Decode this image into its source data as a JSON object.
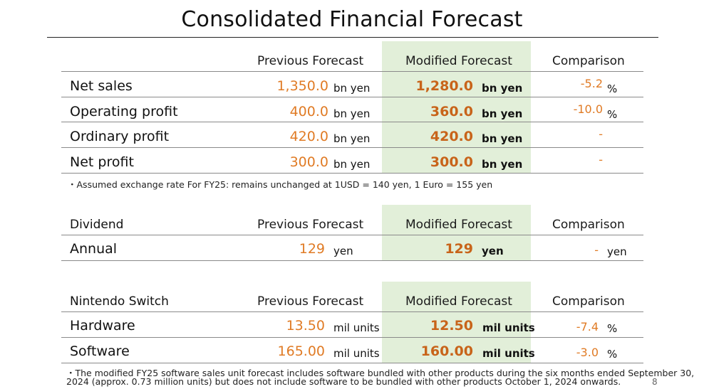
{
  "title": "Consolidated Financial Forecast",
  "columns": {
    "previous": "Previous Forecast",
    "modified": "Modified Forecast",
    "comparison": "Comparison"
  },
  "financials": {
    "rows": [
      {
        "label": "Net sales",
        "prev": "1,350.0",
        "prev_unit": "bn yen",
        "mod": "1,280.0",
        "mod_unit": "bn yen",
        "cmp": "-5.2",
        "cmp_unit": "%"
      },
      {
        "label": "Operating profit",
        "prev": "400.0",
        "prev_unit": "bn yen",
        "mod": "360.0",
        "mod_unit": "bn yen",
        "cmp": "-10.0",
        "cmp_unit": "%"
      },
      {
        "label": "Ordinary profit",
        "prev": "420.0",
        "prev_unit": "bn yen",
        "mod": "420.0",
        "mod_unit": "bn yen",
        "cmp": "-",
        "cmp_unit": ""
      },
      {
        "label": "Net profit",
        "prev": "300.0",
        "prev_unit": "bn yen",
        "mod": "300.0",
        "mod_unit": "bn yen",
        "cmp": "-",
        "cmp_unit": ""
      }
    ],
    "note": "・Assumed exchange rate For FY25: remains unchanged at 1USD = 140 yen, 1 Euro = 155 yen"
  },
  "dividend": {
    "section": "Dividend",
    "rows": [
      {
        "label": "Annual",
        "prev": "129",
        "prev_unit": "yen",
        "mod": "129",
        "mod_unit": "yen",
        "cmp": "-",
        "cmp_unit": "yen"
      }
    ]
  },
  "switch": {
    "section": "Nintendo Switch",
    "rows": [
      {
        "label": "Hardware",
        "prev": "13.50",
        "prev_unit": "mil units",
        "mod": "12.50",
        "mod_unit": "mil units",
        "cmp": "-7.4",
        "cmp_unit": "%"
      },
      {
        "label": "Software",
        "prev": "165.00",
        "prev_unit": "mil units",
        "mod": "160.00",
        "mod_unit": "mil units",
        "cmp": "-3.0",
        "cmp_unit": "%"
      }
    ],
    "note_line1": "・The modified FY25 software sales unit forecast includes software bundled with other products during the six months ended September 30,",
    "note_line2": "2024 (approx. 0.73 million units) but does not include software to be bundled with other products October 1, 2024 onwards."
  },
  "page_number": "8"
}
